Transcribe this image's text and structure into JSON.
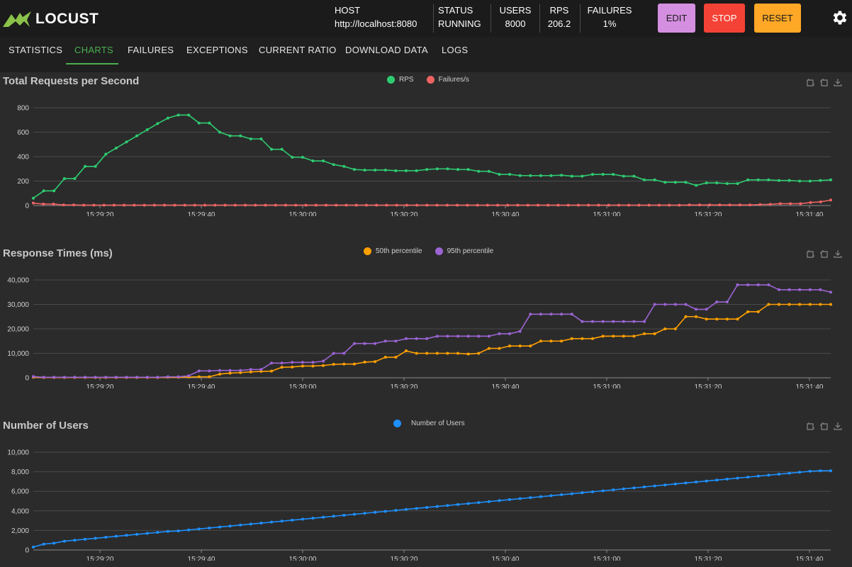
{
  "app": {
    "name": "LOCUST"
  },
  "header": {
    "stats": [
      {
        "label": "HOST",
        "value": "http://localhost:8080"
      },
      {
        "label": "STATUS",
        "value": "RUNNING"
      },
      {
        "label": "USERS",
        "value": "8000"
      },
      {
        "label": "RPS",
        "value": "206.2"
      },
      {
        "label": "FAILURES",
        "value": "1%"
      }
    ],
    "buttons": {
      "edit": "EDIT",
      "stop": "STOP",
      "reset": "RESET"
    },
    "colors": {
      "edit": "#d58fe0",
      "stop": "#f44336",
      "reset": "#ffa726"
    }
  },
  "tabs": [
    {
      "label": "STATISTICS",
      "active": false
    },
    {
      "label": "CHARTS",
      "active": true
    },
    {
      "label": "FAILURES",
      "active": false
    },
    {
      "label": "EXCEPTIONS",
      "active": false
    },
    {
      "label": "CURRENT RATIO",
      "active": false
    },
    {
      "label": "DOWNLOAD DATA",
      "active": false
    },
    {
      "label": "LOGS",
      "active": false
    }
  ],
  "accent": "#4caf50",
  "chart_data": [
    {
      "type": "line",
      "title": "Total Requests per Second",
      "ylim": [
        0,
        800
      ],
      "yticks": [
        "0",
        "200",
        "400",
        "600",
        "800"
      ],
      "xticks": [
        "15:29:20",
        "15:29:40",
        "15:30:00",
        "15:30:20",
        "15:30:40",
        "15:31:00",
        "15:31:20",
        "15:31:40"
      ],
      "series": [
        {
          "name": "RPS",
          "color": "#2ecc71",
          "values": [
            60,
            120,
            120,
            220,
            220,
            320,
            320,
            420,
            470,
            520,
            570,
            620,
            670,
            715,
            740,
            740,
            675,
            675,
            600,
            570,
            570,
            545,
            545,
            460,
            460,
            395,
            395,
            365,
            365,
            335,
            320,
            295,
            290,
            290,
            290,
            285,
            285,
            285,
            295,
            300,
            300,
            295,
            295,
            280,
            280,
            255,
            255,
            245,
            245,
            245,
            245,
            248,
            240,
            240,
            255,
            255,
            255,
            240,
            240,
            210,
            210,
            190,
            190,
            190,
            165,
            185,
            185,
            180,
            180,
            210,
            210,
            210,
            205,
            205,
            200,
            200,
            205,
            210
          ]
        },
        {
          "name": "Failures/s",
          "color": "#f06363",
          "values": [
            20,
            12,
            12,
            5,
            5,
            3,
            3,
            3,
            3,
            3,
            3,
            3,
            3,
            3,
            3,
            3,
            3,
            3,
            3,
            3,
            3,
            3,
            3,
            3,
            3,
            3,
            3,
            3,
            3,
            3,
            3,
            3,
            3,
            3,
            3,
            3,
            3,
            3,
            3,
            3,
            3,
            3,
            3,
            3,
            3,
            3,
            3,
            3,
            3,
            3,
            3,
            3,
            3,
            3,
            3,
            3,
            3,
            3,
            3,
            3,
            3,
            3,
            3,
            3,
            3,
            5,
            5,
            5,
            5,
            5,
            5,
            5,
            8,
            10,
            15,
            15,
            15,
            25,
            30,
            45
          ]
        }
      ]
    },
    {
      "type": "line",
      "title": "Response Times (ms)",
      "ylim": [
        0,
        40000
      ],
      "yticks": [
        "0",
        "10,000",
        "20,000",
        "30,000",
        "40,000"
      ],
      "xticks": [
        "15:29:20",
        "15:29:40",
        "15:30:00",
        "15:30:20",
        "15:30:40",
        "15:31:00",
        "15:31:20",
        "15:31:40"
      ],
      "series": [
        {
          "name": "50th percentile",
          "color": "#ffa000",
          "values": [
            200,
            100,
            100,
            100,
            100,
            100,
            100,
            100,
            100,
            100,
            100,
            100,
            100,
            200,
            200,
            300,
            400,
            400,
            1500,
            1900,
            2100,
            2400,
            2600,
            2700,
            4300,
            4400,
            4800,
            4800,
            5000,
            5500,
            5600,
            5600,
            6400,
            6600,
            8400,
            8400,
            11000,
            10000,
            10000,
            10000,
            10000,
            10000,
            9700,
            10000,
            12000,
            12000,
            13000,
            13000,
            13000,
            15000,
            15000,
            15000,
            16000,
            16000,
            16000,
            17000,
            17000,
            17000,
            17000,
            18000,
            18000,
            20000,
            20000,
            25000,
            25000,
            24000,
            24000,
            24000,
            24000,
            27000,
            27000,
            30000,
            30000,
            30000,
            30000,
            30000,
            30000,
            30000
          ]
        },
        {
          "name": "95th percentile",
          "color": "#9c64d4",
          "values": [
            500,
            200,
            200,
            200,
            200,
            200,
            200,
            200,
            200,
            200,
            200,
            200,
            200,
            400,
            400,
            800,
            2800,
            2800,
            3000,
            3000,
            3000,
            3400,
            3400,
            6000,
            6000,
            6300,
            6300,
            6300,
            6800,
            10000,
            10000,
            14000,
            14000,
            14000,
            15000,
            15000,
            16000,
            16000,
            16000,
            17000,
            17000,
            17000,
            17000,
            17000,
            17000,
            18000,
            18000,
            19000,
            26000,
            26000,
            26000,
            26000,
            26000,
            23000,
            23000,
            23000,
            23000,
            23000,
            23000,
            23000,
            30000,
            30000,
            30000,
            30000,
            28000,
            28000,
            31000,
            31000,
            38000,
            38000,
            38000,
            38000,
            36000,
            36000,
            36000,
            36000,
            36000,
            35000
          ]
        }
      ]
    },
    {
      "type": "line",
      "title": "Number of Users",
      "ylim": [
        0,
        10000
      ],
      "yticks": [
        "0",
        "2,000",
        "4,000",
        "6,000",
        "8,000",
        "10,000"
      ],
      "xticks": [
        "15:29:20",
        "15:29:40",
        "15:30:00",
        "15:30:20",
        "15:30:40",
        "15:31:00",
        "15:31:20",
        "15:31:40"
      ],
      "series": [
        {
          "name": "Number of Users",
          "color": "#1e90ff",
          "values": [
            300,
            600,
            700,
            900,
            1000,
            1100,
            1200,
            1300,
            1400,
            1500,
            1600,
            1700,
            1800,
            1900,
            1950,
            2050,
            2150,
            2250,
            2350,
            2450,
            2550,
            2650,
            2750,
            2850,
            2950,
            3050,
            3150,
            3250,
            3350,
            3450,
            3550,
            3650,
            3750,
            3850,
            3950,
            4050,
            4150,
            4250,
            4350,
            4450,
            4550,
            4650,
            4750,
            4850,
            4950,
            5050,
            5150,
            5250,
            5350,
            5450,
            5550,
            5650,
            5750,
            5850,
            5950,
            6050,
            6150,
            6250,
            6350,
            6450,
            6550,
            6650,
            6750,
            6850,
            6950,
            7050,
            7150,
            7250,
            7350,
            7450,
            7550,
            7650,
            7750,
            7850,
            7950,
            8050,
            8100,
            8100
          ]
        }
      ]
    }
  ]
}
